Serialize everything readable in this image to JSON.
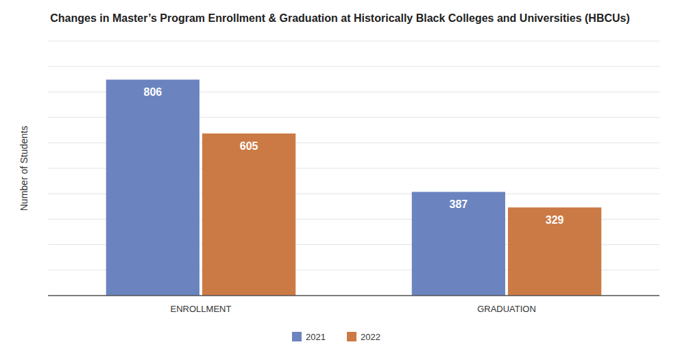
{
  "chart_data": {
    "type": "bar",
    "title": "Changes in Master’s Program Enrollment & Graduation at Historically Black Colleges and Universities (HBCUs)",
    "categories": [
      "ENROLLMENT",
      "GRADUATION"
    ],
    "series": [
      {
        "name": "2021",
        "color": "#6b84c0",
        "values": [
          806,
          387
        ]
      },
      {
        "name": "2022",
        "color": "#cc7a45",
        "values": [
          605,
          329
        ]
      }
    ],
    "y_label": "Number of Students",
    "ylim": [
      0,
      950
    ],
    "yticks": [
      0,
      95,
      190,
      285,
      380,
      475,
      570,
      665,
      760,
      855,
      950
    ],
    "grid": true,
    "tick_labels": "x",
    "data_labels": true,
    "legend": "bottom"
  }
}
